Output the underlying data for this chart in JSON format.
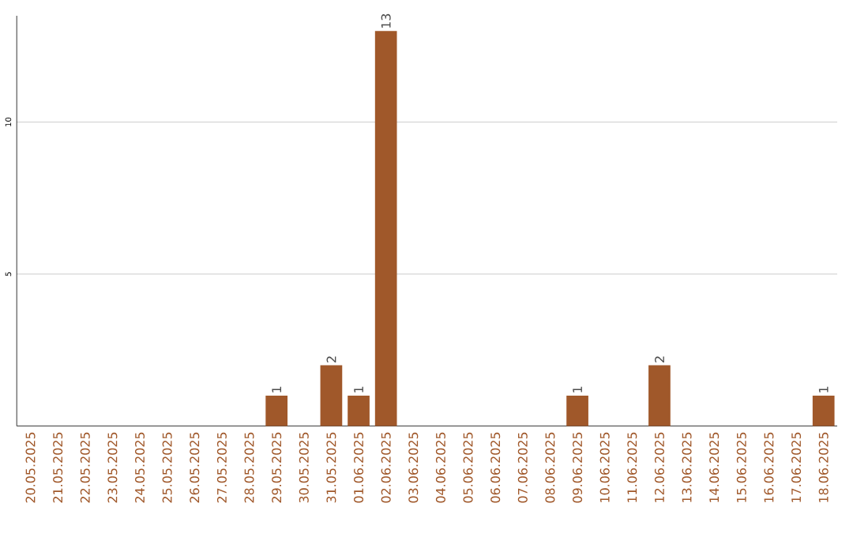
{
  "chart_data": {
    "type": "bar",
    "categories": [
      "20.05.2025",
      "21.05.2025",
      "22.05.2025",
      "23.05.2025",
      "24.05.2025",
      "25.05.2025",
      "26.05.2025",
      "27.05.2025",
      "28.05.2025",
      "29.05.2025",
      "30.05.2025",
      "31.05.2025",
      "01.06.2025",
      "02.06.2025",
      "03.06.2025",
      "04.06.2025",
      "05.06.2025",
      "06.06.2025",
      "07.06.2025",
      "08.06.2025",
      "09.06.2025",
      "10.06.2025",
      "11.06.2025",
      "12.06.2025",
      "13.06.2025",
      "14.06.2025",
      "15.06.2025",
      "16.06.2025",
      "17.06.2025",
      "18.06.2025"
    ],
    "values": [
      0,
      0,
      0,
      0,
      0,
      0,
      0,
      0,
      0,
      1,
      0,
      2,
      1,
      13,
      0,
      0,
      0,
      0,
      0,
      0,
      1,
      0,
      0,
      2,
      0,
      0,
      0,
      0,
      0,
      1
    ],
    "value_labels": [
      null,
      null,
      null,
      null,
      null,
      null,
      null,
      null,
      null,
      "1",
      null,
      "2",
      "1",
      "13",
      null,
      null,
      null,
      null,
      null,
      null,
      "1",
      null,
      null,
      "2",
      null,
      null,
      null,
      null,
      null,
      "1"
    ],
    "color": "#a0582a",
    "ylim": [
      0,
      13.5
    ],
    "yticks": [
      5,
      10
    ],
    "grid": "y"
  }
}
